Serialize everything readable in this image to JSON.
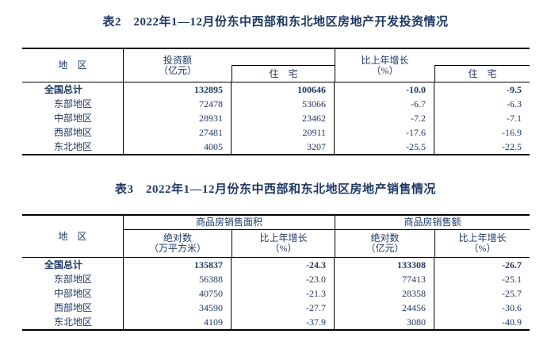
{
  "colors": {
    "text_navy": "#1f3864",
    "border_black": "#000000",
    "background": "#ffffff"
  },
  "table2": {
    "title": "表2　2022年1—12月份东中西部和东北地区房地产开发投资情况",
    "headers": {
      "region": "地　区",
      "investment_line1": "投资额",
      "investment_line2": "（亿元）",
      "residential": "住　宅",
      "growth_line1": "比上年增长",
      "growth_line2": "（%）",
      "residential_growth": "住　宅"
    },
    "rows": [
      {
        "region": "全国总计",
        "investment": "132895",
        "residential": "100646",
        "growth": "-10.0",
        "residential_growth": "-9.5"
      },
      {
        "region": "东部地区",
        "investment": "72478",
        "residential": "53066",
        "growth": "-6.7",
        "residential_growth": "-6.3"
      },
      {
        "region": "中部地区",
        "investment": "28931",
        "residential": "23462",
        "growth": "-7.2",
        "residential_growth": "-7.1"
      },
      {
        "region": "西部地区",
        "investment": "27481",
        "residential": "20911",
        "growth": "-17.6",
        "residential_growth": "-16.9"
      },
      {
        "region": "东北地区",
        "investment": "4005",
        "residential": "3207",
        "growth": "-25.5",
        "residential_growth": "-22.5"
      }
    ]
  },
  "table3": {
    "title": "表3　2022年1—12月份东中西部和东北地区房地产销售情况",
    "headers": {
      "region": "地　区",
      "group_area": "商品房销售面积",
      "group_amount": "商品房销售额",
      "abs_area_line1": "绝对数",
      "abs_area_line2": "（万平方米）",
      "growth_area_line1": "比上年增长",
      "growth_area_line2": "（%）",
      "abs_amount_line1": "绝对数",
      "abs_amount_line2": "（亿元）",
      "growth_amount_line1": "比上年增长",
      "growth_amount_line2": "（%）"
    },
    "rows": [
      {
        "region": "全国总计",
        "area": "135837",
        "area_growth": "-24.3",
        "amount": "133308",
        "amount_growth": "-26.7"
      },
      {
        "region": "东部地区",
        "area": "56388",
        "area_growth": "-23.0",
        "amount": "77413",
        "amount_growth": "-25.1"
      },
      {
        "region": "中部地区",
        "area": "40750",
        "area_growth": "-21.3",
        "amount": "28358",
        "amount_growth": "-25.7"
      },
      {
        "region": "西部地区",
        "area": "34590",
        "area_growth": "-27.7",
        "amount": "24456",
        "amount_growth": "-30.6"
      },
      {
        "region": "东北地区",
        "area": "4109",
        "area_growth": "-37.9",
        "amount": "3080",
        "amount_growth": "-40.9"
      }
    ]
  }
}
